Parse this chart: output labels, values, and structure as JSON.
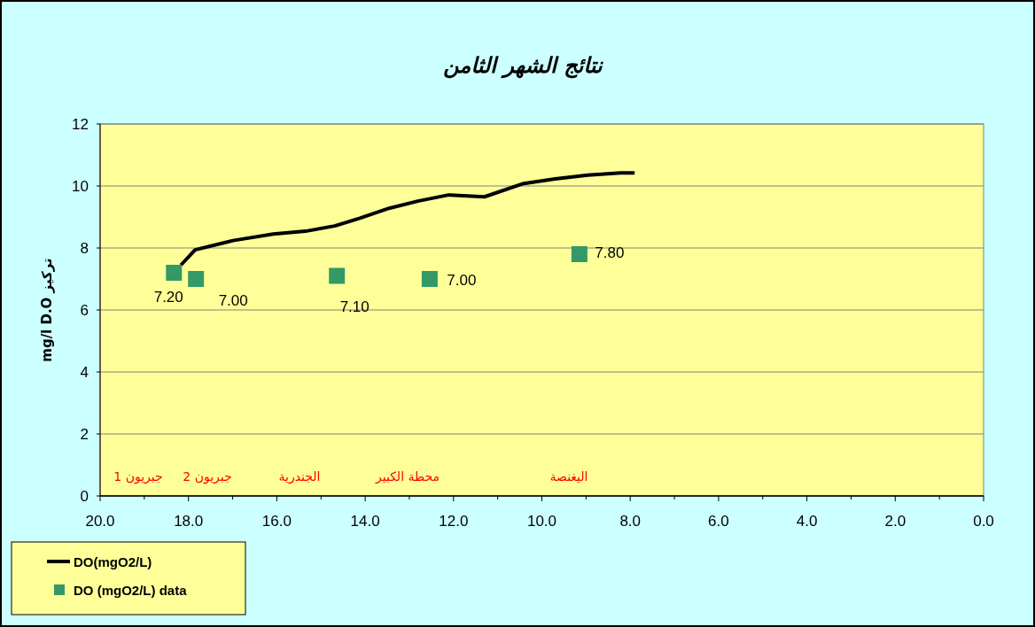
{
  "chart_data": {
    "type": "line",
    "title": "نتائج الشهر الثامن",
    "ylabel": "mg/l  D.O تركيز",
    "xlim": [
      20,
      0
    ],
    "ylim": [
      0,
      12
    ],
    "xticks": [
      {
        "value": 20,
        "label": "20.0"
      },
      {
        "value": 19,
        "label": null
      },
      {
        "value": 18,
        "label": "18.0"
      },
      {
        "value": 17,
        "label": null
      },
      {
        "value": 16,
        "label": "16.0"
      },
      {
        "value": 15,
        "label": null
      },
      {
        "value": 14,
        "label": "14.0"
      },
      {
        "value": 13,
        "label": null
      },
      {
        "value": 12,
        "label": "12.0"
      },
      {
        "value": 11,
        "label": null
      },
      {
        "value": 10,
        "label": "10.0"
      },
      {
        "value": 9,
        "label": null
      },
      {
        "value": 8,
        "label": "8.0"
      },
      {
        "value": 7,
        "label": null
      },
      {
        "value": 6,
        "label": "6.0"
      },
      {
        "value": 5,
        "label": null
      },
      {
        "value": 4,
        "label": "4.0"
      },
      {
        "value": 3,
        "label": null
      },
      {
        "value": 2,
        "label": "2.0"
      },
      {
        "value": 1,
        "label": null
      },
      {
        "value": 0,
        "label": "0.0"
      }
    ],
    "yticks": [
      0,
      2,
      4,
      6,
      8,
      10,
      12
    ],
    "grid": "y",
    "legend": "bottom left",
    "series": [
      {
        "name": "DO(mgO2/L)",
        "color": "#000000",
        "marker": "none",
        "line_style": "solid",
        "x": [
          18.17,
          17.85,
          16.99,
          16.08,
          15.35,
          14.69,
          14.12,
          13.46,
          12.81,
          12.11,
          11.3,
          10.44,
          9.7,
          8.96,
          8.22,
          7.9
        ],
        "values": [
          7.45,
          7.94,
          8.24,
          8.45,
          8.54,
          8.71,
          8.96,
          9.28,
          9.51,
          9.71,
          9.65,
          10.07,
          10.23,
          10.35,
          10.42,
          10.42
        ]
      },
      {
        "name": "DO (mgO2/L) data",
        "type": "scatter",
        "color": "#339966",
        "marker": "square",
        "x": [
          18.33,
          17.83,
          14.64,
          12.54,
          9.15
        ],
        "values": [
          7.2,
          7.0,
          7.1,
          7.0,
          7.8
        ],
        "value_labels": [
          "7.20",
          "7.00",
          "7.10",
          "7.00",
          "7.80"
        ]
      }
    ],
    "annotations": [
      "جبريون 1",
      "جبريون 2",
      "الجندرية",
      "محطة الكبير",
      "اليغنصة"
    ]
  }
}
